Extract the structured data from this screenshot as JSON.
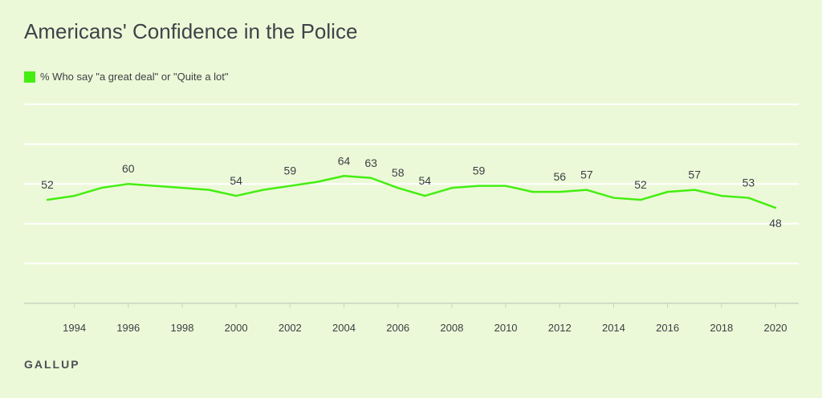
{
  "chart_data": {
    "type": "line",
    "title": "Americans' Confidence in the Police",
    "xlabel": "",
    "ylabel": "",
    "ylim": [
      0,
      100
    ],
    "y_gridlines": [
      20,
      40,
      60,
      80,
      100
    ],
    "grid": true,
    "legend_placement": "top-left",
    "x": [
      1993,
      1994,
      1995,
      1996,
      1997,
      1998,
      1999,
      2000,
      2001,
      2002,
      2003,
      2004,
      2005,
      2006,
      2007,
      2008,
      2009,
      2010,
      2011,
      2012,
      2013,
      2014,
      2015,
      2016,
      2017,
      2018,
      2019,
      2020
    ],
    "x_ticks": [
      1994,
      1996,
      1998,
      2000,
      2002,
      2004,
      2006,
      2008,
      2010,
      2012,
      2014,
      2016,
      2018,
      2020
    ],
    "series": [
      {
        "name": "% Who say \"a great deal\" or \"Quite a lot\"",
        "color": "#44ee11",
        "values": [
          52,
          54,
          58,
          60,
          59,
          58,
          57,
          54,
          57,
          59,
          61,
          64,
          63,
          58,
          54,
          58,
          59,
          59,
          56,
          56,
          57,
          53,
          52,
          56,
          57,
          54,
          53,
          48
        ],
        "labeled_years": [
          1993,
          1996,
          2000,
          2002,
          2004,
          2005,
          2006,
          2007,
          2009,
          2012,
          2013,
          2015,
          2017,
          2019,
          2020
        ]
      }
    ]
  },
  "brand": "GALLUP"
}
